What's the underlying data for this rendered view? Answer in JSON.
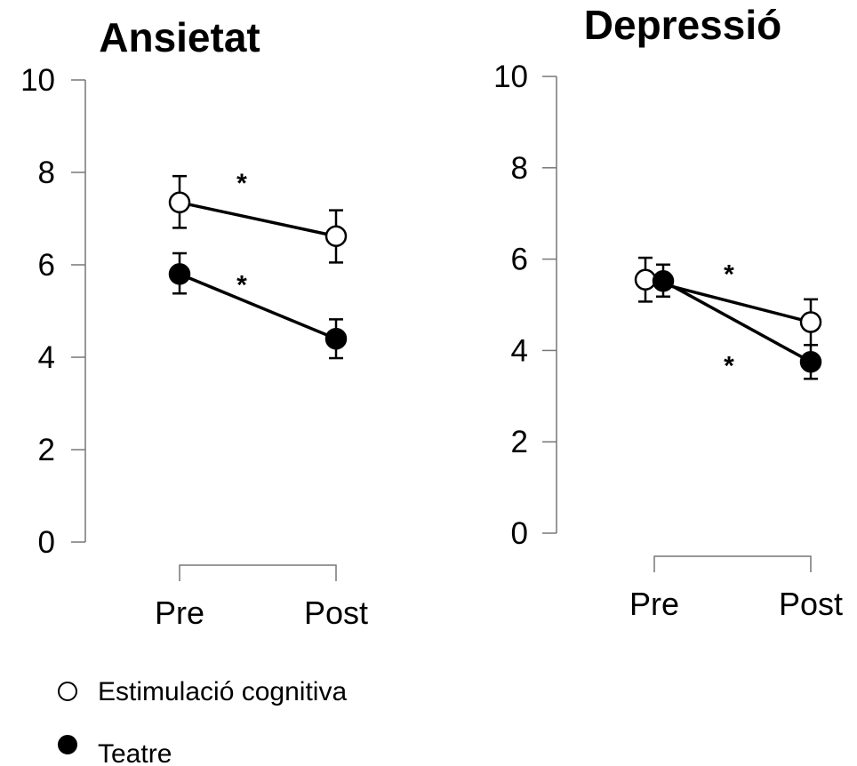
{
  "chart_data": [
    {
      "type": "line",
      "title": "Ansietat",
      "categories": [
        "Pre",
        "Post"
      ],
      "ylim": [
        0,
        10
      ],
      "yticks": [
        "0",
        "2",
        "4",
        "6",
        "8",
        "10"
      ],
      "series": [
        {
          "name": "Estimulació cognitiva",
          "marker": "open-circle",
          "values": [
            7.35,
            6.62
          ],
          "error_low": [
            6.8,
            6.05
          ],
          "error_high": [
            7.92,
            7.18
          ]
        },
        {
          "name": "Teatre",
          "marker": "filled-circle",
          "values": [
            5.8,
            4.4
          ],
          "error_low": [
            5.38,
            3.98
          ],
          "error_high": [
            6.25,
            4.82
          ]
        }
      ],
      "annotations": [
        {
          "text": "*",
          "series": "Estimulació cognitiva",
          "x": 0.5,
          "y": 8.0
        },
        {
          "text": "*",
          "series": "Teatre",
          "x": 0.5,
          "y": 5.8
        }
      ]
    },
    {
      "type": "line",
      "title": "Depressió",
      "categories": [
        "Pre",
        "Post"
      ],
      "ylim": [
        0,
        10
      ],
      "yticks": [
        "0",
        "2",
        "4",
        "6",
        "8",
        "10"
      ],
      "series": [
        {
          "name": "Estimulació cognitiva",
          "marker": "open-circle",
          "values": [
            5.55,
            4.62
          ],
          "error_low": [
            5.07,
            4.12
          ],
          "error_high": [
            6.03,
            5.12
          ]
        },
        {
          "name": "Teatre",
          "marker": "filled-circle",
          "values": [
            5.52,
            3.75
          ],
          "error_low": [
            5.18,
            3.38
          ],
          "error_high": [
            5.88,
            4.12
          ]
        }
      ],
      "annotations": [
        {
          "text": "*",
          "series": "Estimulació cognitiva",
          "x": 0.5,
          "y": 5.9
        },
        {
          "text": "*",
          "series": "Teatre",
          "x": 0.5,
          "y": 3.9
        }
      ]
    }
  ],
  "legend": {
    "placement": "bottom-left",
    "items": [
      {
        "label": "Estimulació cognitiva",
        "marker": "open-circle"
      },
      {
        "label": "Teatre",
        "marker": "filled-circle"
      }
    ]
  },
  "colors": {
    "line": "#000000",
    "axis": "#777777",
    "open_fill": "#ffffff",
    "filled_fill": "#000000"
  }
}
